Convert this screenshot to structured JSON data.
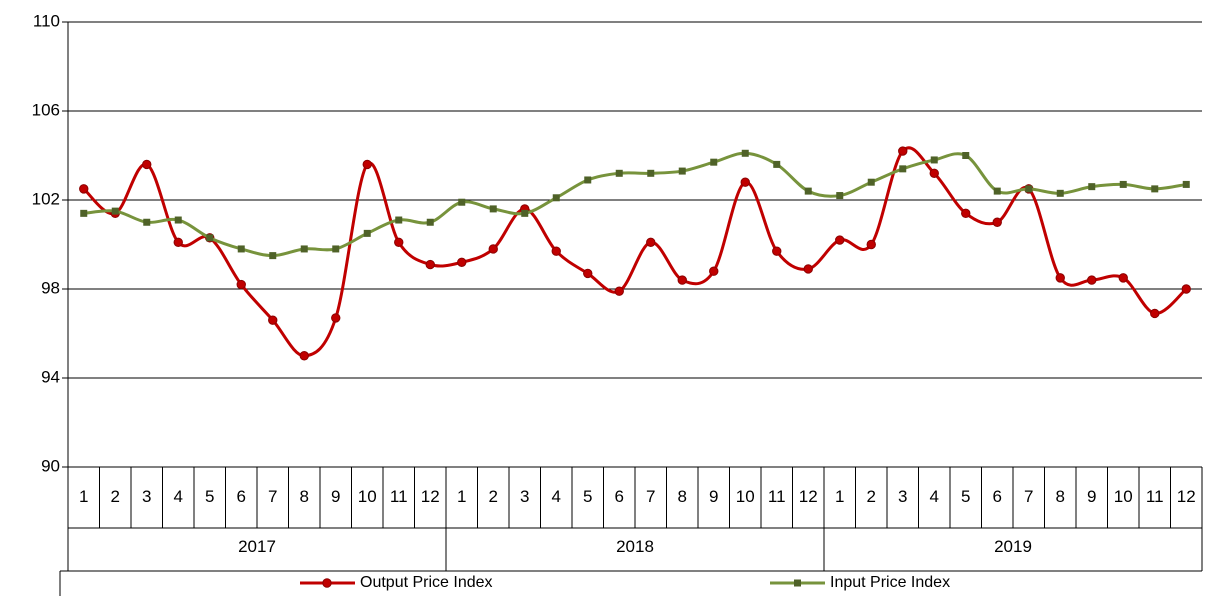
{
  "chart_data": {
    "type": "line",
    "categories": [
      "1",
      "2",
      "3",
      "4",
      "5",
      "6",
      "7",
      "8",
      "9",
      "10",
      "11",
      "12",
      "1",
      "2",
      "3",
      "4",
      "5",
      "6",
      "7",
      "8",
      "9",
      "10",
      "11",
      "12",
      "1",
      "2",
      "3",
      "4",
      "5",
      "6",
      "7",
      "8",
      "9",
      "10",
      "11",
      "12"
    ],
    "groups": [
      "2017",
      "2018",
      "2019"
    ],
    "series": [
      {
        "name": "Output Price Index",
        "color": "#c00000",
        "marker": "circle",
        "values": [
          102.5,
          101.4,
          103.6,
          100.1,
          100.3,
          98.2,
          96.6,
          95.0,
          96.7,
          103.6,
          100.1,
          99.1,
          99.2,
          99.8,
          101.6,
          99.7,
          98.7,
          97.9,
          100.1,
          98.4,
          98.8,
          102.8,
          99.7,
          98.9,
          100.2,
          100.0,
          104.2,
          103.2,
          101.4,
          101.0,
          102.5,
          98.5,
          98.4,
          98.5,
          96.9,
          98.0
        ]
      },
      {
        "name": "Input Price Index",
        "color": "#77933c",
        "marker": "square",
        "values": [
          101.4,
          101.5,
          101.0,
          101.1,
          100.3,
          99.8,
          99.5,
          99.8,
          99.8,
          100.5,
          101.1,
          101.0,
          101.9,
          101.6,
          101.4,
          102.1,
          102.9,
          103.2,
          103.2,
          103.3,
          103.7,
          104.1,
          103.6,
          102.4,
          102.2,
          102.8,
          103.4,
          103.8,
          104.0,
          102.4,
          102.5,
          102.3,
          102.6,
          102.7,
          102.5,
          102.7
        ]
      }
    ],
    "ylim": [
      90,
      110
    ],
    "yticks": [
      90,
      94,
      98,
      102,
      106,
      110
    ],
    "grid": true,
    "smooth": true,
    "legend": "bottom"
  }
}
